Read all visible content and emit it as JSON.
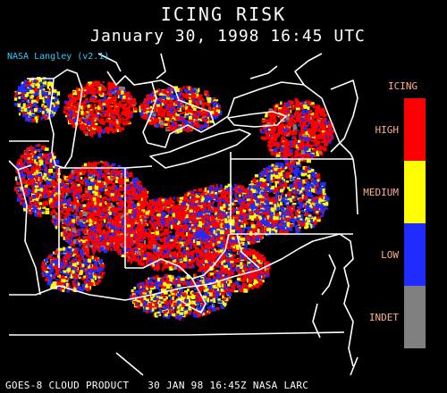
{
  "title": "ICING RISK",
  "subtitle": "January 30, 1998 16:45 UTC",
  "source_label": "NASA Langley (v2.1)",
  "legend": {
    "title": "ICING",
    "items": [
      {
        "label": "HIGH",
        "color": "#ff0000"
      },
      {
        "label": "MEDIUM",
        "color": "#ffff00"
      },
      {
        "label": "LOW",
        "color": "#1f2bff"
      },
      {
        "label": "INDET",
        "color": "#808080"
      }
    ]
  },
  "footer": "GOES-8 CLOUD PRODUCT   30 JAN 98 16:45Z NASA LARC",
  "colors": {
    "background": "#000000",
    "boundaries": "#ffffff",
    "source_text": "#29d0ff",
    "legend_text": "#ffb08a"
  }
}
